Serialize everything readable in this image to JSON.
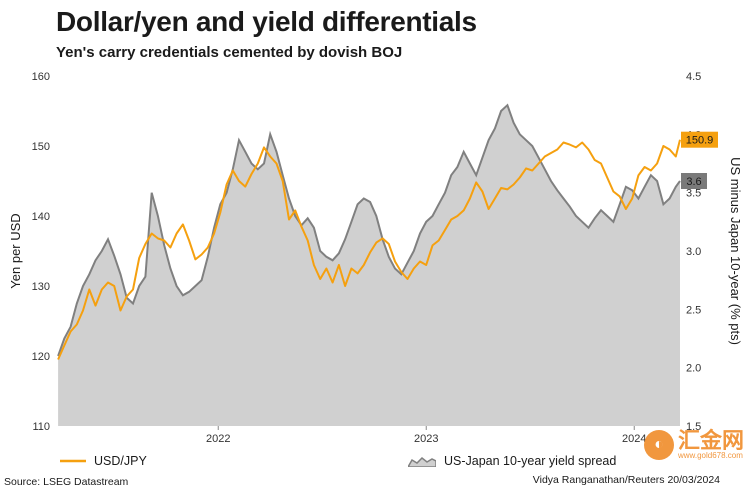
{
  "title": "Dollar/yen and yield differentials",
  "subtitle": "Yen's carry credentials cemented by dovish BOJ",
  "source": "Source: LSEG Datastream",
  "credit": "Vidya Ranganathan/Reuters 20/03/2024",
  "watermark": {
    "chinese": "汇金网",
    "url": "www.gold678.com",
    "logo": "circle-logo-icon"
  },
  "colors": {
    "usdjpy": "#f5a00f",
    "spread_fill": "#d0d0d0",
    "spread_line": "#808080",
    "spread_badge": "#7a7a7a"
  },
  "chart_data": {
    "type": "line",
    "x_labels": [
      "2022",
      "2023",
      "2024"
    ],
    "x_label_dates": [
      2022.0,
      2023.0,
      2024.0
    ],
    "y_left": {
      "label": "Yen per USD",
      "min": 110,
      "max": 160,
      "ticks": [
        110,
        120,
        130,
        140,
        150,
        160
      ]
    },
    "y_right": {
      "label": "US minus Japan 10-year (% pts)",
      "min": 1.5,
      "max": 4.5,
      "ticks": [
        1.5,
        2.0,
        2.5,
        3.0,
        3.5,
        4.0,
        4.5
      ]
    },
    "series": [
      {
        "name": "USD/JPY",
        "axis": "left",
        "style": "line",
        "end_label": "150.9",
        "x": [
          2021.23,
          2021.26,
          2021.29,
          2021.32,
          2021.35,
          2021.38,
          2021.41,
          2021.44,
          2021.47,
          2021.5,
          2021.53,
          2021.56,
          2021.59,
          2021.62,
          2021.65,
          2021.68,
          2021.71,
          2021.74,
          2021.77,
          2021.8,
          2021.83,
          2021.86,
          2021.89,
          2021.92,
          2021.95,
          2021.98,
          2022.01,
          2022.04,
          2022.07,
          2022.1,
          2022.13,
          2022.16,
          2022.19,
          2022.22,
          2022.25,
          2022.28,
          2022.31,
          2022.34,
          2022.37,
          2022.4,
          2022.43,
          2022.46,
          2022.49,
          2022.52,
          2022.55,
          2022.58,
          2022.61,
          2022.64,
          2022.67,
          2022.7,
          2022.73,
          2022.76,
          2022.79,
          2022.82,
          2022.85,
          2022.88,
          2022.91,
          2022.94,
          2022.97,
          2023.0,
          2023.03,
          2023.06,
          2023.09,
          2023.12,
          2023.15,
          2023.18,
          2023.21,
          2023.24,
          2023.27,
          2023.3,
          2023.33,
          2023.36,
          2023.39,
          2023.42,
          2023.45,
          2023.48,
          2023.51,
          2023.54,
          2023.57,
          2023.6,
          2023.63,
          2023.66,
          2023.69,
          2023.72,
          2023.75,
          2023.78,
          2023.81,
          2023.84,
          2023.87,
          2023.9,
          2023.93,
          2023.96,
          2023.99,
          2024.02,
          2024.05,
          2024.08,
          2024.11,
          2024.14,
          2024.17,
          2024.2,
          2024.22
        ],
        "values": [
          119.5,
          121.5,
          123.5,
          124.5,
          126.5,
          129.5,
          127.2,
          129.5,
          130.5,
          130.0,
          126.5,
          128.5,
          129.5,
          134.0,
          136.0,
          137.5,
          136.8,
          136.5,
          135.5,
          137.5,
          138.8,
          136.5,
          133.8,
          134.5,
          135.5,
          137.5,
          140.5,
          144.5,
          146.5,
          145.0,
          144.2,
          146.0,
          147.5,
          149.8,
          148.5,
          147.5,
          145.0,
          139.5,
          140.8,
          138.5,
          136.5,
          133.0,
          131.0,
          132.5,
          130.5,
          133.0,
          130.0,
          132.5,
          131.8,
          133.0,
          134.8,
          136.2,
          136.8,
          136.0,
          133.5,
          132.0,
          131.0,
          132.5,
          133.5,
          133.0,
          135.8,
          136.5,
          138.0,
          139.5,
          140.0,
          140.8,
          142.5,
          144.8,
          143.5,
          141.0,
          142.5,
          144.0,
          143.8,
          144.5,
          145.5,
          146.8,
          146.5,
          147.5,
          148.5,
          149.0,
          149.5,
          150.5,
          150.2,
          149.8,
          150.5,
          149.5,
          148.0,
          147.5,
          145.5,
          143.5,
          142.8,
          141.0,
          142.5,
          145.8,
          147.0,
          146.5,
          147.5,
          150.0,
          149.5,
          148.5,
          150.9
        ]
      },
      {
        "name": "US-Japan 10-year yield spread",
        "axis": "right",
        "style": "area",
        "end_label": "3.6",
        "x": [
          2021.23,
          2021.26,
          2021.29,
          2021.32,
          2021.35,
          2021.38,
          2021.41,
          2021.44,
          2021.47,
          2021.5,
          2021.53,
          2021.56,
          2021.59,
          2021.62,
          2021.65,
          2021.68,
          2021.71,
          2021.74,
          2021.77,
          2021.8,
          2021.83,
          2021.86,
          2021.89,
          2021.92,
          2021.95,
          2021.98,
          2022.01,
          2022.04,
          2022.07,
          2022.1,
          2022.13,
          2022.16,
          2022.19,
          2022.22,
          2022.25,
          2022.28,
          2022.31,
          2022.34,
          2022.37,
          2022.4,
          2022.43,
          2022.46,
          2022.49,
          2022.52,
          2022.55,
          2022.58,
          2022.61,
          2022.64,
          2022.67,
          2022.7,
          2022.73,
          2022.76,
          2022.79,
          2022.82,
          2022.85,
          2022.88,
          2022.91,
          2022.94,
          2022.97,
          2023.0,
          2023.03,
          2023.06,
          2023.09,
          2023.12,
          2023.15,
          2023.18,
          2023.21,
          2023.24,
          2023.27,
          2023.3,
          2023.33,
          2023.36,
          2023.39,
          2023.42,
          2023.45,
          2023.48,
          2023.51,
          2023.54,
          2023.57,
          2023.6,
          2023.63,
          2023.66,
          2023.69,
          2023.72,
          2023.75,
          2023.78,
          2023.81,
          2023.84,
          2023.87,
          2023.9,
          2023.93,
          2023.96,
          2023.99,
          2024.02,
          2024.05,
          2024.08,
          2024.11,
          2024.14,
          2024.17,
          2024.2,
          2024.22
        ],
        "values": [
          2.1,
          2.25,
          2.35,
          2.55,
          2.7,
          2.8,
          2.92,
          3.0,
          3.1,
          2.96,
          2.8,
          2.6,
          2.55,
          2.7,
          2.78,
          3.5,
          3.3,
          3.05,
          2.85,
          2.7,
          2.62,
          2.65,
          2.7,
          2.75,
          2.95,
          3.2,
          3.4,
          3.5,
          3.7,
          3.95,
          3.85,
          3.75,
          3.7,
          3.75,
          4.0,
          3.85,
          3.65,
          3.45,
          3.3,
          3.22,
          3.28,
          3.2,
          3.0,
          2.95,
          2.92,
          2.98,
          3.1,
          3.25,
          3.4,
          3.45,
          3.42,
          3.3,
          3.1,
          2.95,
          2.85,
          2.8,
          2.9,
          3.0,
          3.15,
          3.25,
          3.3,
          3.4,
          3.5,
          3.65,
          3.72,
          3.85,
          3.75,
          3.65,
          3.8,
          3.95,
          4.05,
          4.2,
          4.25,
          4.1,
          4.0,
          3.95,
          3.9,
          3.8,
          3.7,
          3.6,
          3.52,
          3.45,
          3.38,
          3.3,
          3.25,
          3.2,
          3.28,
          3.35,
          3.3,
          3.25,
          3.4,
          3.55,
          3.52,
          3.45,
          3.55,
          3.65,
          3.6,
          3.4,
          3.45,
          3.55,
          3.6
        ]
      }
    ]
  }
}
